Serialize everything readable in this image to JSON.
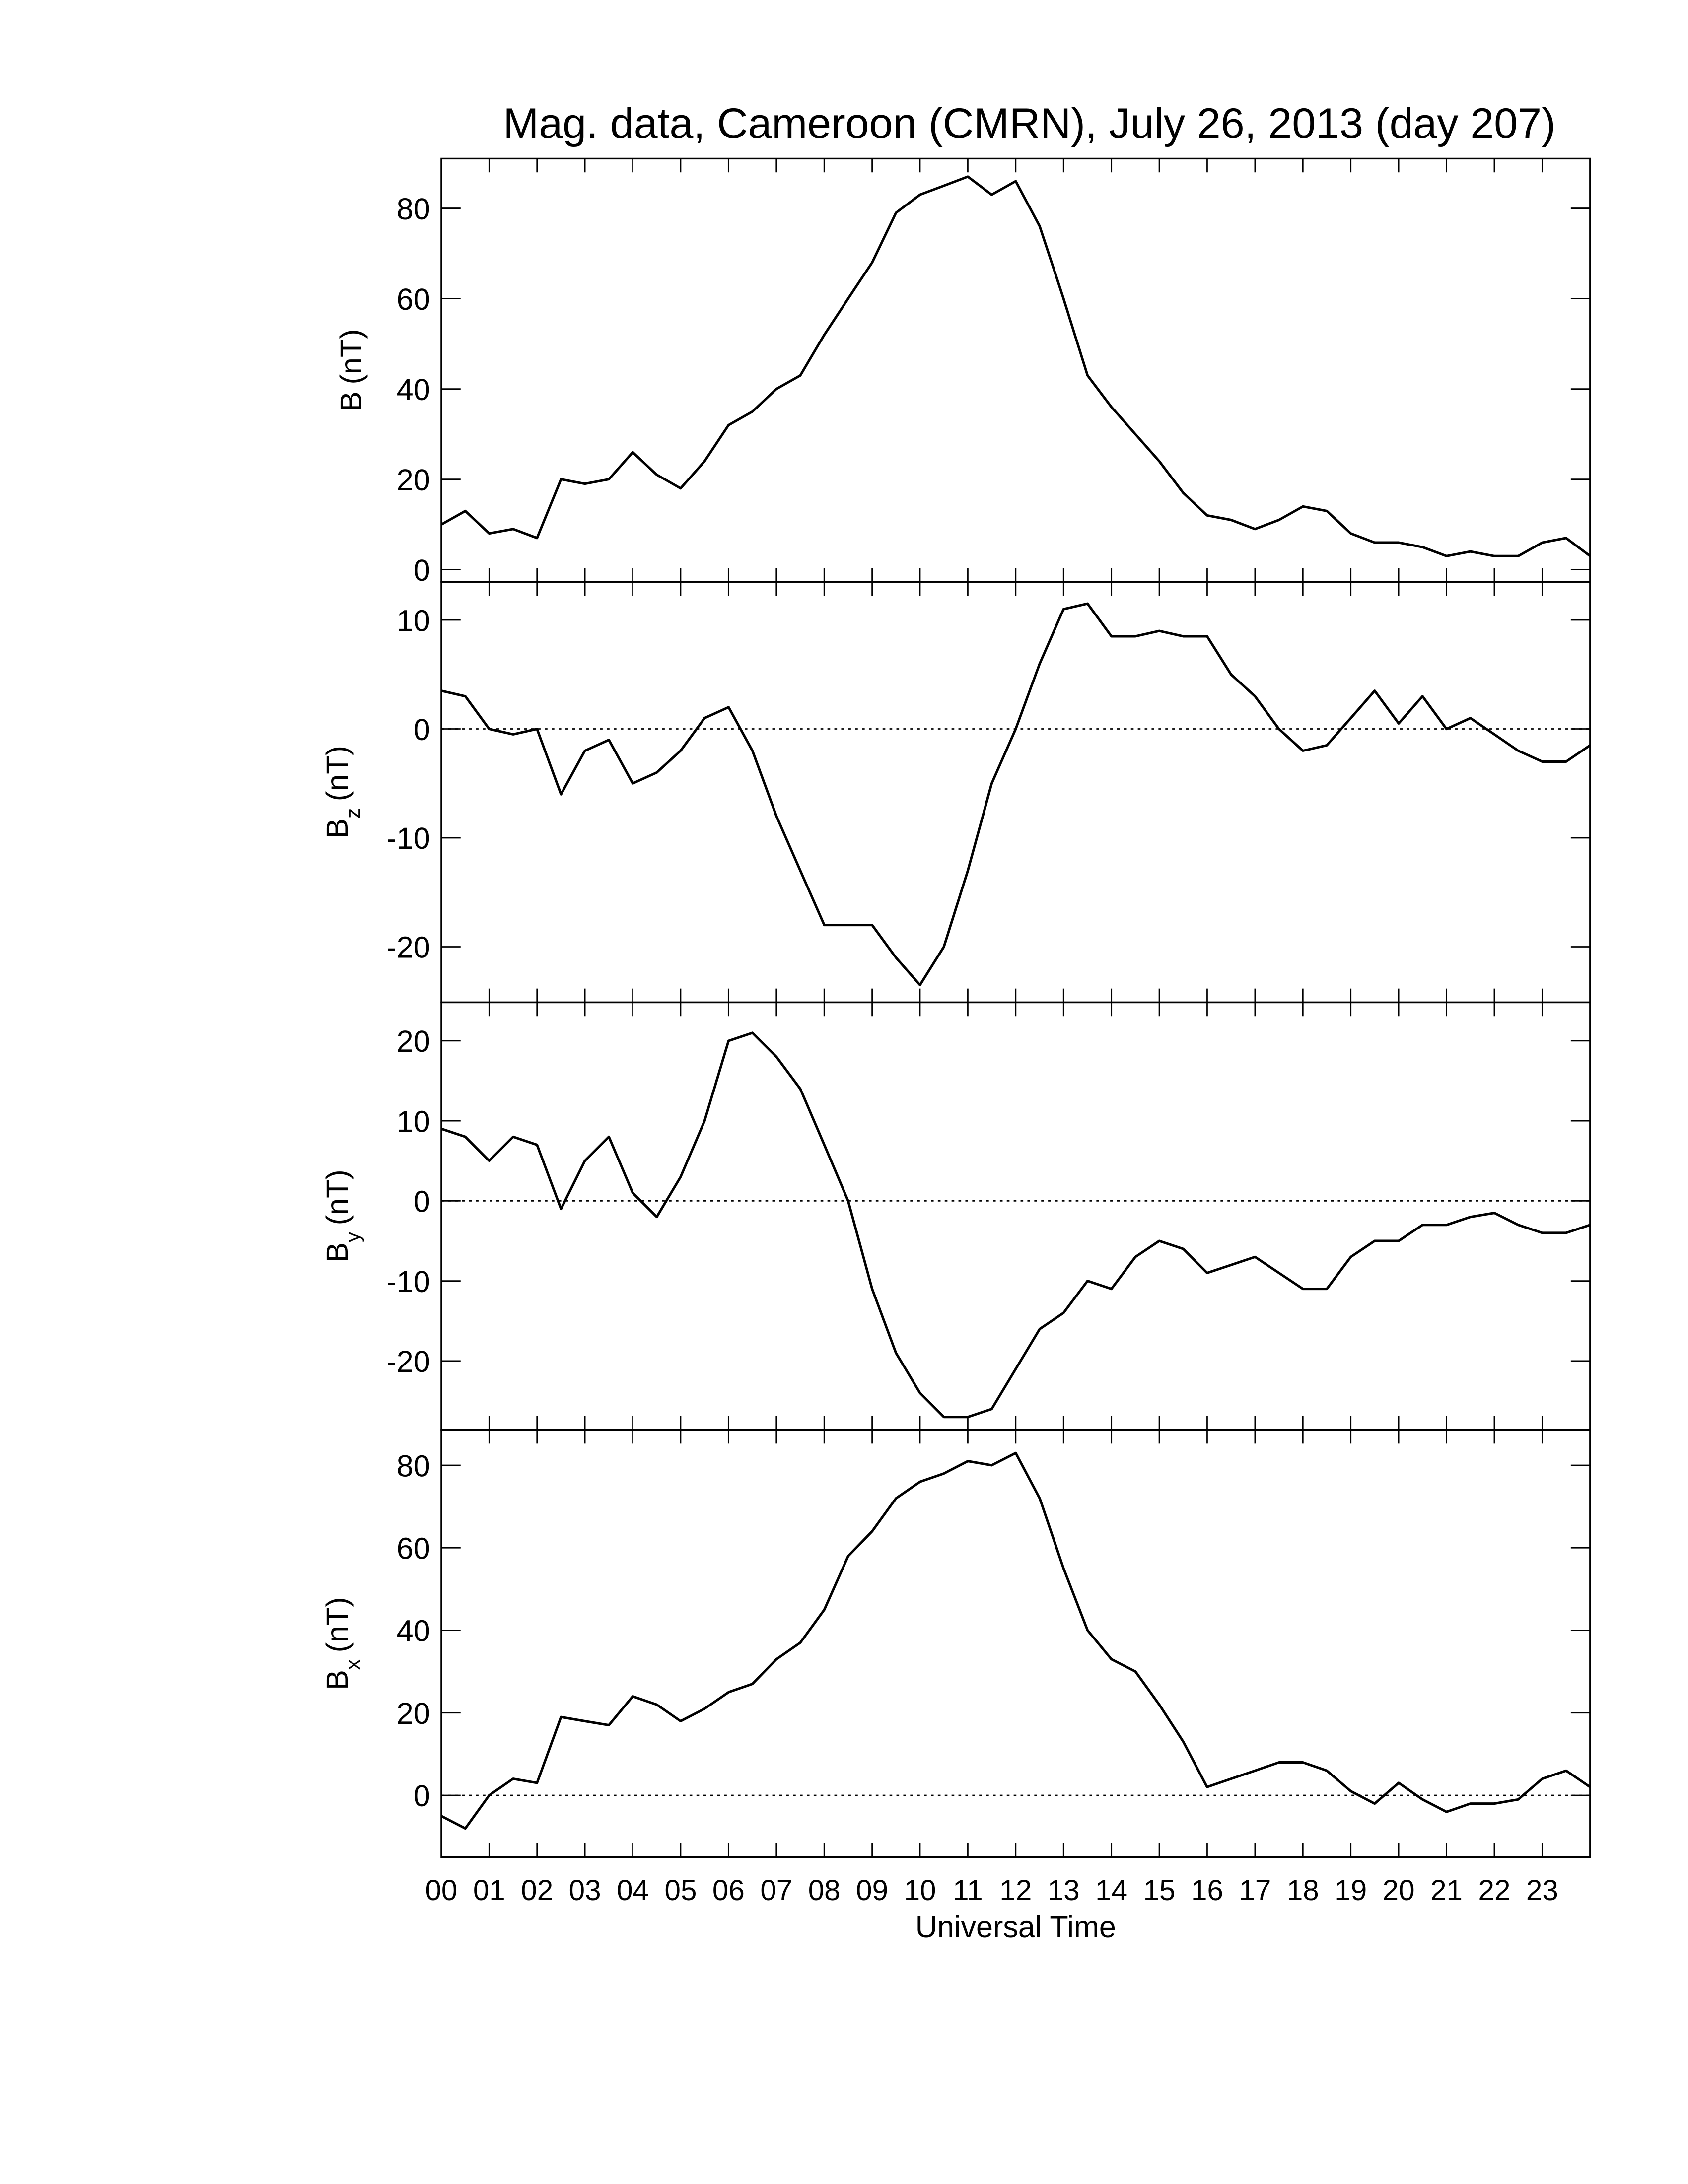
{
  "chart_data": [
    {
      "type": "line",
      "title": "Mag. data, Cameroon (CMRN), July 26, 2013 (day 207)",
      "ylabel": "B",
      "ylabel_unit": "(nT)",
      "color": "#000000",
      "xlim": [
        0,
        24
      ],
      "xticks": [
        0,
        1,
        2,
        3,
        4,
        5,
        6,
        7,
        8,
        9,
        10,
        11,
        12,
        13,
        14,
        15,
        16,
        17,
        18,
        19,
        20,
        21,
        22,
        23
      ],
      "ylim": [
        -2.7,
        91
      ],
      "yticks": [
        0,
        20,
        40,
        60,
        80
      ],
      "x": [
        0,
        0.5,
        1,
        1.5,
        2,
        2.5,
        3,
        3.5,
        4,
        4.5,
        5,
        5.5,
        6,
        6.5,
        7,
        7.5,
        8,
        8.5,
        9,
        9.5,
        10,
        10.5,
        11,
        11.5,
        12,
        12.5,
        13,
        13.5,
        14,
        14.5,
        15,
        15.5,
        16,
        16.5,
        17,
        17.5,
        18,
        18.5,
        19,
        19.5,
        20,
        20.5,
        21,
        21.5,
        22,
        22.5,
        23,
        23.5,
        24
      ],
      "values": [
        10,
        13,
        8,
        9,
        7,
        20,
        19,
        20,
        26,
        21,
        18,
        24,
        32,
        35,
        40,
        43,
        52,
        60,
        68,
        79,
        83,
        85,
        87,
        83,
        86,
        76,
        60,
        43,
        36,
        30,
        24,
        17,
        12,
        11,
        9,
        11,
        14,
        13,
        8,
        6,
        6,
        5,
        3,
        4,
        3,
        3,
        6,
        7,
        3
      ]
    },
    {
      "type": "line",
      "ylabel": "B",
      "ylabel_subscript": "z",
      "ylabel_unit": "(nT)",
      "color": "#000000",
      "zero_line": true,
      "xlim": [
        0,
        24
      ],
      "xticks": [
        0,
        1,
        2,
        3,
        4,
        5,
        6,
        7,
        8,
        9,
        10,
        11,
        12,
        13,
        14,
        15,
        16,
        17,
        18,
        19,
        20,
        21,
        22,
        23
      ],
      "ylim": [
        -25.1,
        13.5
      ],
      "yticks": [
        -20,
        -10,
        0,
        10
      ],
      "x": [
        0,
        0.5,
        1,
        1.5,
        2,
        2.5,
        3,
        3.5,
        4,
        4.5,
        5,
        5.5,
        6,
        6.5,
        7,
        7.5,
        8,
        8.5,
        9,
        9.5,
        10,
        10.5,
        11,
        11.5,
        12,
        12.5,
        13,
        13.5,
        14,
        14.5,
        15,
        15.5,
        16,
        16.5,
        17,
        17.5,
        18,
        18.5,
        19,
        19.5,
        20,
        20.5,
        21,
        21.5,
        22,
        22.5,
        23,
        23.5,
        24
      ],
      "values": [
        3.5,
        3,
        0,
        -0.5,
        0,
        -6,
        -2,
        -1,
        -5,
        -4,
        -2,
        1,
        2,
        -2,
        -8,
        -13,
        -18,
        -18,
        -18,
        -21,
        -23.5,
        -20,
        -13,
        -5,
        0,
        6,
        11,
        11.5,
        8.5,
        8.5,
        9,
        8.5,
        8.5,
        5,
        3,
        0,
        -2,
        -1.5,
        1,
        3.5,
        0.5,
        3,
        0,
        1,
        -0.5,
        -2,
        -3,
        -3,
        -1.5
      ]
    },
    {
      "type": "line",
      "ylabel": "B",
      "ylabel_subscript": "y",
      "ylabel_unit": "(nT)",
      "color": "#000000",
      "zero_line": true,
      "xlim": [
        0,
        24
      ],
      "xticks": [
        0,
        1,
        2,
        3,
        4,
        5,
        6,
        7,
        8,
        9,
        10,
        11,
        12,
        13,
        14,
        15,
        16,
        17,
        18,
        19,
        20,
        21,
        22,
        23
      ],
      "ylim": [
        -28.6,
        24.8
      ],
      "yticks": [
        -20,
        -10,
        0,
        10,
        20
      ],
      "x": [
        0,
        0.5,
        1,
        1.5,
        2,
        2.5,
        3,
        3.5,
        4,
        4.5,
        5,
        5.5,
        6,
        6.5,
        7,
        7.5,
        8,
        8.5,
        9,
        9.5,
        10,
        10.5,
        11,
        11.5,
        12,
        12.5,
        13,
        13.5,
        14,
        14.5,
        15,
        15.5,
        16,
        16.5,
        17,
        17.5,
        18,
        18.5,
        19,
        19.5,
        20,
        20.5,
        21,
        21.5,
        22,
        22.5,
        23,
        23.5,
        24
      ],
      "values": [
        9,
        8,
        5,
        8,
        7,
        -1,
        5,
        8,
        1,
        -2,
        3,
        10,
        20,
        21,
        18,
        14,
        7,
        0,
        -11,
        -19,
        -24,
        -27,
        -27,
        -26,
        -21,
        -16,
        -14,
        -10,
        -11,
        -7,
        -5,
        -6,
        -9,
        -8,
        -7,
        -9,
        -11,
        -11,
        -7,
        -5,
        -5,
        -3,
        -3,
        -2,
        -1.5,
        -3,
        -4,
        -4,
        -3
      ]
    },
    {
      "type": "line",
      "ylabel": "B",
      "ylabel_subscript": "x",
      "ylabel_unit": "(nT)",
      "xlabel": "Universal Time",
      "color": "#000000",
      "zero_line": true,
      "xlim": [
        0,
        24
      ],
      "xticks": [
        {
          "value": 0,
          "label": "00"
        },
        {
          "value": 1,
          "label": "01"
        },
        {
          "value": 2,
          "label": "02"
        },
        {
          "value": 3,
          "label": "03"
        },
        {
          "value": 4,
          "label": "04"
        },
        {
          "value": 5,
          "label": "05"
        },
        {
          "value": 6,
          "label": "06"
        },
        {
          "value": 7,
          "label": "07"
        },
        {
          "value": 8,
          "label": "08"
        },
        {
          "value": 9,
          "label": "09"
        },
        10,
        11,
        12,
        13,
        14,
        15,
        16,
        17,
        18,
        19,
        20,
        21,
        22,
        23
      ],
      "ylim": [
        -15,
        88.6
      ],
      "yticks": [
        0,
        20,
        40,
        60,
        80
      ],
      "x": [
        0,
        0.5,
        1,
        1.5,
        2,
        2.5,
        3,
        3.5,
        4,
        4.5,
        5,
        5.5,
        6,
        6.5,
        7,
        7.5,
        8,
        8.5,
        9,
        9.5,
        10,
        10.5,
        11,
        11.5,
        12,
        12.5,
        13,
        13.5,
        14,
        14.5,
        15,
        15.5,
        16,
        16.5,
        17,
        17.5,
        18,
        18.5,
        19,
        19.5,
        20,
        20.5,
        21,
        21.5,
        22,
        22.5,
        23,
        23.5,
        24
      ],
      "values": [
        -5,
        -8,
        0,
        4,
        3,
        19,
        18,
        17,
        24,
        22,
        18,
        21,
        25,
        27,
        33,
        37,
        45,
        58,
        64,
        72,
        76,
        78,
        81,
        80,
        83,
        72,
        55,
        40,
        33,
        30,
        22,
        13,
        2,
        4,
        6,
        8,
        8,
        6,
        1,
        -2,
        3,
        -1,
        -4,
        -2,
        -2,
        -1,
        4,
        6,
        2
      ]
    }
  ]
}
